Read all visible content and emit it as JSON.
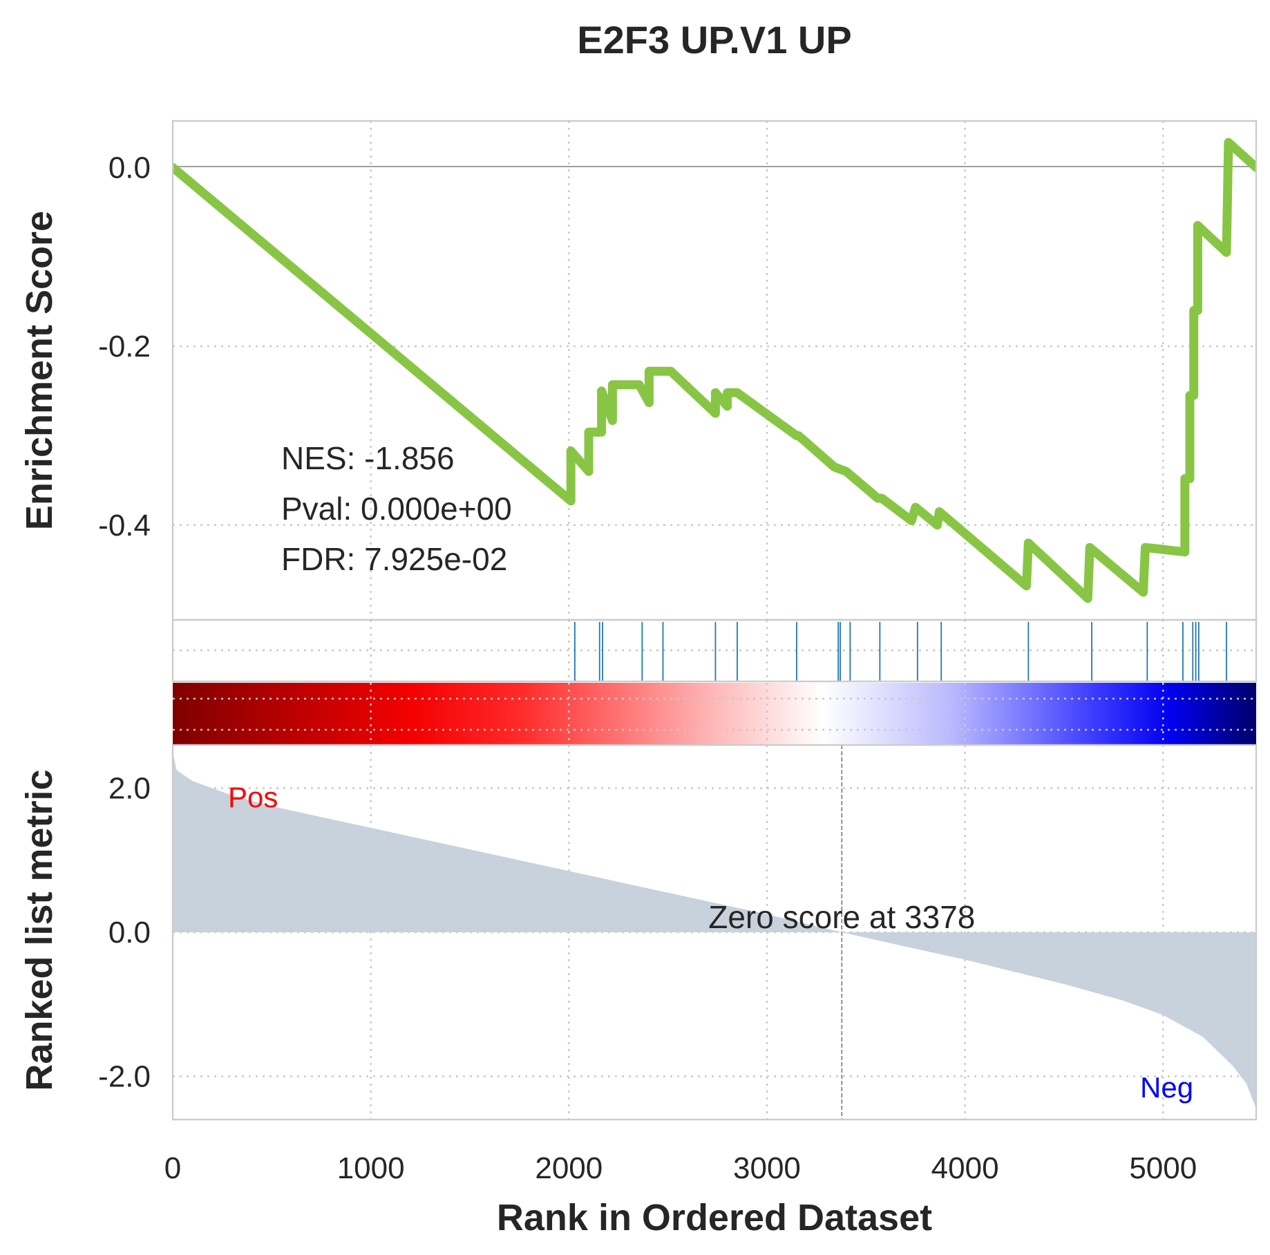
{
  "chart_data": {
    "type": "line",
    "title": "E2F3 UP.V1 UP",
    "xlabel": "Rank in Ordered Dataset",
    "x_ticks": [
      "0",
      "1000",
      "2000",
      "3000",
      "4000",
      "5000"
    ],
    "xlim": [
      0,
      5470
    ],
    "grid": true,
    "panels": {
      "enrichment": {
        "ylabel": "Enrichment Score",
        "ylim": [
          -0.506,
          0.052
        ],
        "y_ticks": [
          "0.0",
          "-0.2",
          "-0.4"
        ],
        "stats": [
          "NES: -1.856",
          "Pval: 0.000e+00",
          "FDR: 7.925e-02"
        ],
        "line_color": "#88c544",
        "x": [
          0,
          2010,
          2010,
          2100,
          2100,
          2165,
          2165,
          2220,
          2220,
          2355,
          2355,
          2405,
          2405,
          2470,
          2470,
          2515,
          2515,
          2740,
          2740,
          2800,
          2800,
          2850,
          2850,
          3150,
          3160,
          3340,
          3400,
          3560,
          3580,
          3730,
          3750,
          3860,
          3870,
          4310,
          4320,
          4620,
          4630,
          4900,
          4910,
          5110,
          5110,
          5135,
          5135,
          5155,
          5155,
          5175,
          5175,
          5320,
          5330,
          5470
        ],
        "y": [
          0,
          -0.373,
          -0.317,
          -0.34,
          -0.296,
          -0.296,
          -0.25,
          -0.283,
          -0.243,
          -0.243,
          -0.243,
          -0.263,
          -0.228,
          -0.228,
          -0.228,
          -0.228,
          -0.228,
          -0.275,
          -0.252,
          -0.267,
          -0.252,
          -0.252,
          -0.252,
          -0.3,
          -0.3,
          -0.335,
          -0.34,
          -0.37,
          -0.37,
          -0.395,
          -0.38,
          -0.4,
          -0.385,
          -0.468,
          -0.42,
          -0.482,
          -0.425,
          -0.475,
          -0.425,
          -0.43,
          -0.348,
          -0.348,
          -0.255,
          -0.255,
          -0.16,
          -0.16,
          -0.065,
          -0.095,
          0.028,
          0.0
        ]
      },
      "hits": {
        "color": "#1f77b4",
        "positions": [
          2030,
          2155,
          2170,
          2370,
          2475,
          2740,
          2850,
          3150,
          3360,
          3370,
          3420,
          3570,
          3760,
          3880,
          4320,
          4640,
          4920,
          5100,
          5150,
          5165,
          5180,
          5320
        ]
      },
      "colorbar": {
        "cmap": "seismic",
        "direction": "red (positive) to blue (negative)"
      },
      "ranked_metric": {
        "ylabel": "Ranked list metric",
        "ylim": [
          -2.6,
          2.6
        ],
        "y_ticks": [
          "2.0",
          "0.0",
          "-2.0"
        ],
        "fill_color": "#c8d2dc",
        "x": [
          0,
          20,
          100,
          200,
          300,
          500,
          1000,
          1500,
          2000,
          2500,
          3000,
          3378,
          3700,
          4000,
          4500,
          4800,
          5000,
          5200,
          5350,
          5420,
          5470
        ],
        "values": [
          2.5,
          2.25,
          2.1,
          2.0,
          1.9,
          1.75,
          1.45,
          1.15,
          0.85,
          0.55,
          0.25,
          0.0,
          -0.2,
          -0.38,
          -0.72,
          -0.95,
          -1.15,
          -1.45,
          -1.85,
          -2.1,
          -2.45
        ],
        "zero_cross_rank": 3378,
        "zero_label": "Zero score at 3378",
        "pos_label": "Pos",
        "neg_label": "Neg",
        "pos_color": "#ff0000",
        "neg_color": "#0000ff"
      }
    }
  }
}
